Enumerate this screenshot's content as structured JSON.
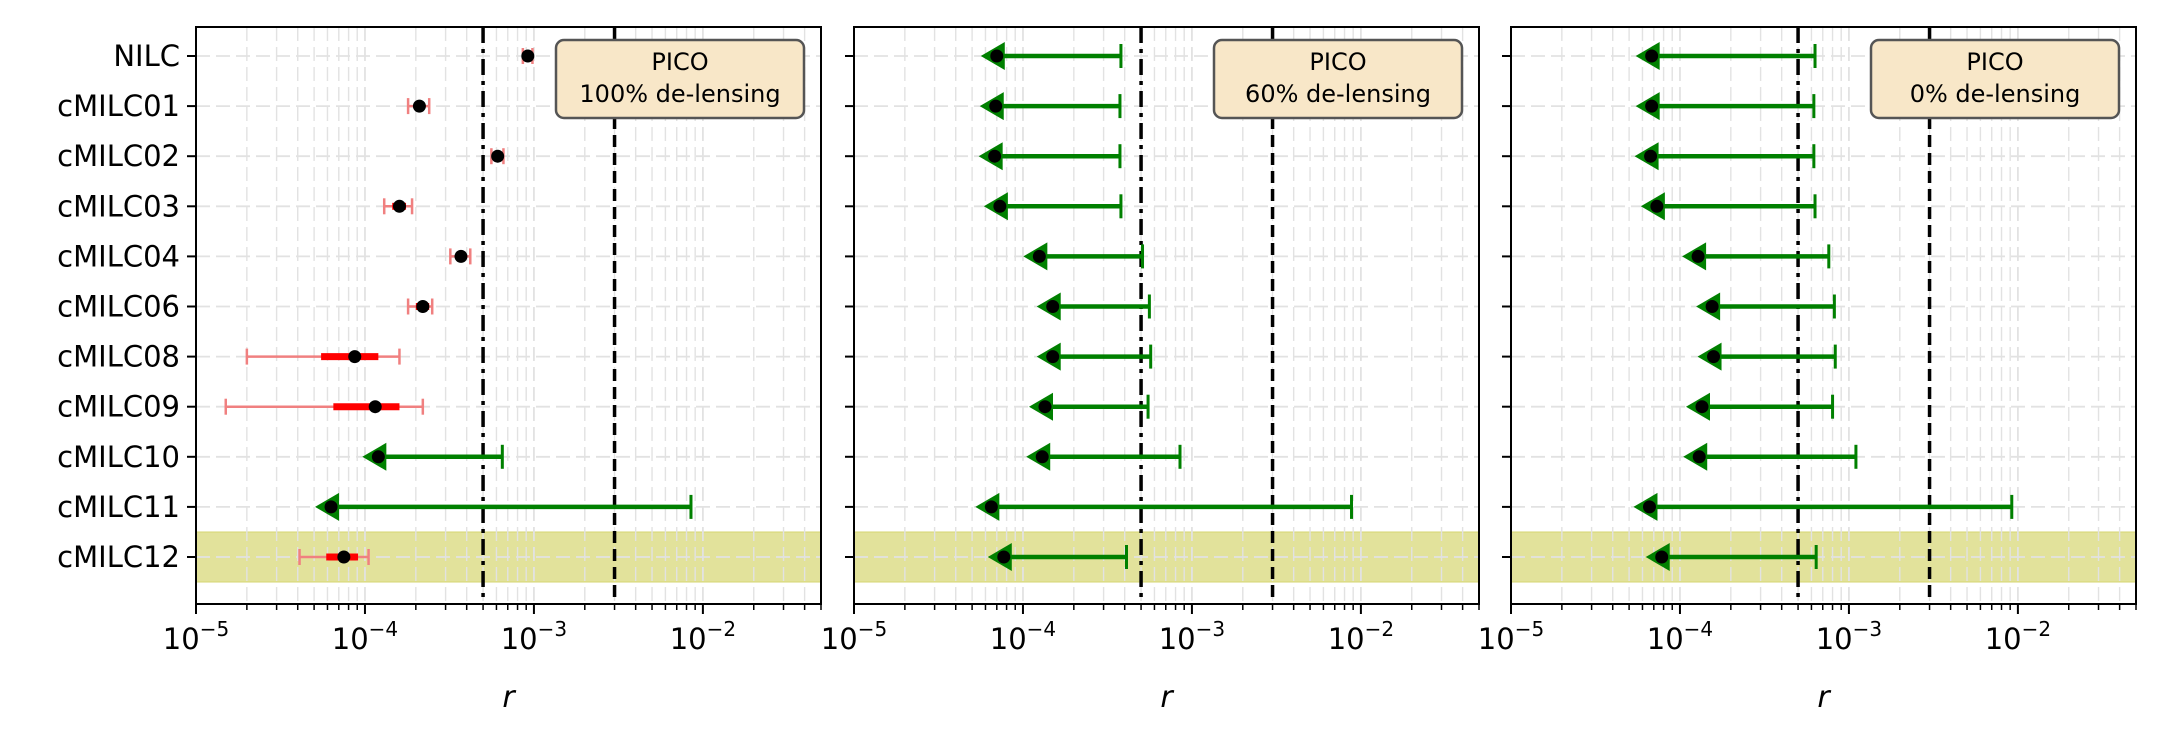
{
  "chart_data": [
    {
      "type": "scatter",
      "panel": "left",
      "annotation": [
        "PICO",
        "100% de-lensing"
      ],
      "xlabel": "r",
      "xscale": "log",
      "xlim": [
        1e-05,
        0.05
      ],
      "xticks": [
        1e-05,
        0.0001,
        0.001,
        0.01
      ],
      "xtick_labels": [
        "10^{-5}",
        "10^{-4}",
        "10^{-3}",
        "10^{-2}"
      ],
      "grid": true,
      "vlines": [
        {
          "x": 0.0005,
          "style": "dashdot",
          "color": "#000000"
        },
        {
          "x": 0.003,
          "style": "dashed",
          "color": "#000000"
        }
      ],
      "highlight_category": "cMILC12",
      "categories": [
        "NILC",
        "cMILC01",
        "cMILC02",
        "cMILC03",
        "cMILC04",
        "cMILC06",
        "cMILC08",
        "cMILC09",
        "cMILC10",
        "cMILC11",
        "cMILC12"
      ],
      "points": [
        {
          "category": "NILC",
          "value": 0.00092,
          "kind": "detection",
          "err1": [
            0.00089,
            0.00095
          ],
          "err2": [
            0.00086,
            0.00098
          ]
        },
        {
          "category": "cMILC01",
          "value": 0.00021,
          "kind": "detection",
          "err1": [
            0.000195,
            0.000225
          ],
          "err2": [
            0.00018,
            0.00024
          ]
        },
        {
          "category": "cMILC02",
          "value": 0.00061,
          "kind": "detection",
          "err1": [
            0.000585,
            0.000635
          ],
          "err2": [
            0.00056,
            0.00066
          ]
        },
        {
          "category": "cMILC03",
          "value": 0.00016,
          "kind": "detection",
          "err1": [
            0.000145,
            0.000175
          ],
          "err2": [
            0.00013,
            0.00019
          ]
        },
        {
          "category": "cMILC04",
          "value": 0.00037,
          "kind": "detection",
          "err1": [
            0.000345,
            0.000395
          ],
          "err2": [
            0.00032,
            0.00042
          ]
        },
        {
          "category": "cMILC06",
          "value": 0.00022,
          "kind": "detection",
          "err1": [
            0.0002,
            0.00024
          ],
          "err2": [
            0.00018,
            0.00025
          ]
        },
        {
          "category": "cMILC08",
          "value": 8.7e-05,
          "kind": "detection",
          "err1": [
            5.5e-05,
            0.00012
          ],
          "err2": [
            2e-05,
            0.00016
          ]
        },
        {
          "category": "cMILC09",
          "value": 0.000115,
          "kind": "detection",
          "err1": [
            6.5e-05,
            0.00016
          ],
          "err2": [
            1.5e-05,
            0.00022
          ]
        },
        {
          "category": "cMILC10",
          "value": 0.00012,
          "kind": "upper_limit",
          "limit": 0.00065
        },
        {
          "category": "cMILC11",
          "value": 6.3e-05,
          "kind": "upper_limit",
          "limit": 0.0085
        },
        {
          "category": "cMILC12",
          "value": 7.5e-05,
          "kind": "detection",
          "err1": [
            5.9e-05,
            9.1e-05
          ],
          "err2": [
            4.1e-05,
            0.000105
          ]
        }
      ]
    },
    {
      "type": "scatter",
      "panel": "middle",
      "annotation": [
        "PICO",
        "60% de-lensing"
      ],
      "xlabel": "r",
      "xscale": "log",
      "xlim": [
        1e-05,
        0.05
      ],
      "xticks": [
        1e-05,
        0.0001,
        0.001,
        0.01
      ],
      "xtick_labels": [
        "10^{-5}",
        "10^{-4}",
        "10^{-3}",
        "10^{-2}"
      ],
      "grid": true,
      "vlines": [
        {
          "x": 0.0005,
          "style": "dashdot",
          "color": "#000000"
        },
        {
          "x": 0.003,
          "style": "dashed",
          "color": "#000000"
        }
      ],
      "highlight_category": "cMILC12",
      "categories": [
        "NILC",
        "cMILC01",
        "cMILC02",
        "cMILC03",
        "cMILC04",
        "cMILC06",
        "cMILC08",
        "cMILC09",
        "cMILC10",
        "cMILC11",
        "cMILC12"
      ],
      "points": [
        {
          "category": "NILC",
          "value": 7e-05,
          "kind": "upper_limit",
          "limit": 0.00038
        },
        {
          "category": "cMILC01",
          "value": 6.9e-05,
          "kind": "upper_limit",
          "limit": 0.000375
        },
        {
          "category": "cMILC02",
          "value": 6.8e-05,
          "kind": "upper_limit",
          "limit": 0.000375
        },
        {
          "category": "cMILC03",
          "value": 7.3e-05,
          "kind": "upper_limit",
          "limit": 0.00038
        },
        {
          "category": "cMILC04",
          "value": 0.000125,
          "kind": "upper_limit",
          "limit": 0.00051
        },
        {
          "category": "cMILC06",
          "value": 0.00015,
          "kind": "upper_limit",
          "limit": 0.00056
        },
        {
          "category": "cMILC08",
          "value": 0.00015,
          "kind": "upper_limit",
          "limit": 0.00057
        },
        {
          "category": "cMILC09",
          "value": 0.000135,
          "kind": "upper_limit",
          "limit": 0.00055
        },
        {
          "category": "cMILC10",
          "value": 0.00013,
          "kind": "upper_limit",
          "limit": 0.00085
        },
        {
          "category": "cMILC11",
          "value": 6.5e-05,
          "kind": "upper_limit",
          "limit": 0.0088
        },
        {
          "category": "cMILC12",
          "value": 7.7e-05,
          "kind": "upper_limit",
          "limit": 0.00041
        }
      ]
    },
    {
      "type": "scatter",
      "panel": "right",
      "annotation": [
        "PICO",
        "0% de-lensing"
      ],
      "xlabel": "r",
      "xscale": "log",
      "xlim": [
        1e-05,
        0.05
      ],
      "xticks": [
        1e-05,
        0.0001,
        0.001,
        0.01
      ],
      "xtick_labels": [
        "10^{-5}",
        "10^{-4}",
        "10^{-3}",
        "10^{-2}"
      ],
      "grid": true,
      "vlines": [
        {
          "x": 0.0005,
          "style": "dashdot",
          "color": "#000000"
        },
        {
          "x": 0.003,
          "style": "dashed",
          "color": "#000000"
        }
      ],
      "highlight_category": "cMILC12",
      "categories": [
        "NILC",
        "cMILC01",
        "cMILC02",
        "cMILC03",
        "cMILC04",
        "cMILC06",
        "cMILC08",
        "cMILC09",
        "cMILC10",
        "cMILC11",
        "cMILC12"
      ],
      "points": [
        {
          "category": "NILC",
          "value": 6.8e-05,
          "kind": "upper_limit",
          "limit": 0.00063
        },
        {
          "category": "cMILC01",
          "value": 6.8e-05,
          "kind": "upper_limit",
          "limit": 0.00062
        },
        {
          "category": "cMILC02",
          "value": 6.7e-05,
          "kind": "upper_limit",
          "limit": 0.00062
        },
        {
          "category": "cMILC03",
          "value": 7.3e-05,
          "kind": "upper_limit",
          "limit": 0.00063
        },
        {
          "category": "cMILC04",
          "value": 0.000128,
          "kind": "upper_limit",
          "limit": 0.00076
        },
        {
          "category": "cMILC06",
          "value": 0.000155,
          "kind": "upper_limit",
          "limit": 0.00082
        },
        {
          "category": "cMILC08",
          "value": 0.000158,
          "kind": "upper_limit",
          "limit": 0.00083
        },
        {
          "category": "cMILC09",
          "value": 0.000135,
          "kind": "upper_limit",
          "limit": 0.0008
        },
        {
          "category": "cMILC10",
          "value": 0.00013,
          "kind": "upper_limit",
          "limit": 0.0011
        },
        {
          "category": "cMILC11",
          "value": 6.6e-05,
          "kind": "upper_limit",
          "limit": 0.0092
        },
        {
          "category": "cMILC12",
          "value": 7.8e-05,
          "kind": "upper_limit",
          "limit": 0.00064
        }
      ]
    }
  ],
  "colors": {
    "detection_marker": "#000000",
    "detection_err_inner": "#ff0000",
    "detection_err_outer": "#f08080",
    "upper_limit": "#008000",
    "highlight_band": "#d6d671",
    "annotation_face": "#f8e7c8",
    "annotation_edge": "#555555",
    "grid": "#e2e2e2"
  }
}
